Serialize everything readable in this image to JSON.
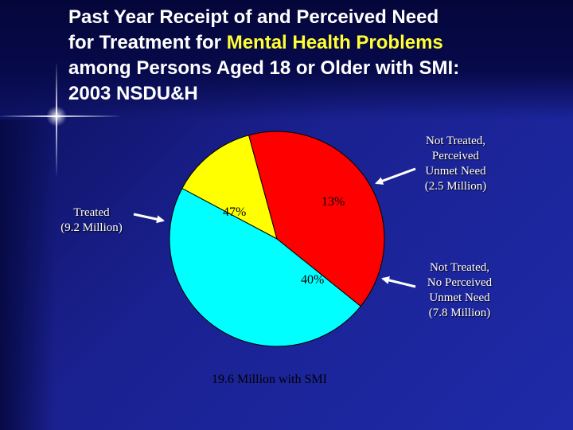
{
  "title": {
    "line1": "Past Year Receipt of and Perceived Need",
    "line2_prefix": "for Treatment for ",
    "line2_highlight": "Mental Health Problems",
    "line3": "among Persons Aged 18 or Older with SMI:",
    "line4": "2003 NSDU&H"
  },
  "chart_data": {
    "type": "pie",
    "title": "Past Year Receipt of and Perceived Need for Treatment for Mental Health Problems among Persons Aged 18 or Older with SMI: 2003 NSDU&H",
    "caption": "19.6 Million with SMI",
    "slices": [
      {
        "label_lines": [
          "Not Treated,",
          "Perceived",
          "Unmet Need",
          "(2.5 Million)"
        ],
        "value": 13,
        "value_label": "13%",
        "color": "#ffff00"
      },
      {
        "label_lines": [
          "Not Treated,",
          "No Perceived",
          "Unmet Need",
          "(7.8 Million)"
        ],
        "value": 40,
        "value_label": "40%",
        "color": "#ff0000"
      },
      {
        "label_lines": [
          "Treated",
          "(9.2 Million)"
        ],
        "value": 47,
        "value_label": "47%",
        "color": "#00ffff"
      }
    ]
  },
  "colors": {
    "background": "#1a2190",
    "title_text": "#ffffff",
    "title_highlight": "#ffff33",
    "arrow": "#ffffff"
  }
}
